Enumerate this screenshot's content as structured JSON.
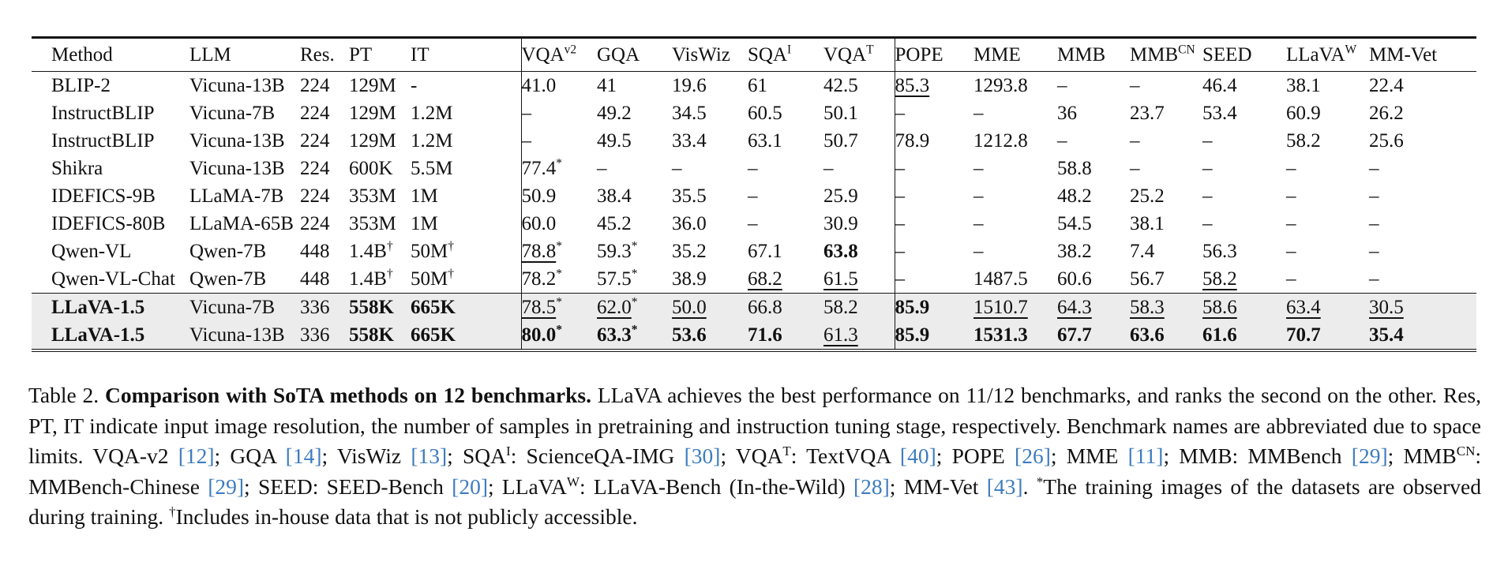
{
  "colors": {
    "citation": "#3e7cbf",
    "highlight_row_bg": "#ececec",
    "rule": "#141414",
    "text": "#111111"
  },
  "table": {
    "columns": [
      {
        "t": "Method"
      },
      {
        "t": "LLM"
      },
      {
        "t": "Res."
      },
      {
        "t": "PT"
      },
      {
        "t": "IT",
        "sep": true
      },
      {
        "t": "VQA",
        "sup": "v2"
      },
      {
        "t": "GQA"
      },
      {
        "t": "VisWiz"
      },
      {
        "t": "SQA",
        "sup": "I"
      },
      {
        "t": "VQA",
        "sup": "T",
        "sep": true
      },
      {
        "t": "POPE"
      },
      {
        "t": "MME"
      },
      {
        "t": "MMB"
      },
      {
        "t": "MMB",
        "sup": "CN"
      },
      {
        "t": "SEED"
      },
      {
        "t": "LLaVA",
        "sup": "W"
      },
      {
        "t": "MM-Vet"
      }
    ],
    "rows": [
      {
        "highlight": false,
        "cells": [
          "BLIP-2",
          "Vicuna-13B",
          "224",
          "129M",
          "-",
          "41.0",
          "41",
          "19.6",
          "61",
          "42.5",
          {
            "t": "85.3",
            "st": "u"
          },
          "1293.8",
          "–",
          "–",
          "46.4",
          "38.1",
          "22.4"
        ]
      },
      {
        "highlight": false,
        "cells": [
          "InstructBLIP",
          "Vicuna-7B",
          "224",
          "129M",
          "1.2M",
          "–",
          "49.2",
          "34.5",
          "60.5",
          "50.1",
          "–",
          "–",
          "36",
          "23.7",
          "53.4",
          "60.9",
          "26.2"
        ]
      },
      {
        "highlight": false,
        "cells": [
          "InstructBLIP",
          "Vicuna-13B",
          "224",
          "129M",
          "1.2M",
          "–",
          "49.5",
          "33.4",
          "63.1",
          "50.7",
          "78.9",
          "1212.8",
          "–",
          "–",
          "–",
          "58.2",
          "25.6"
        ]
      },
      {
        "highlight": false,
        "cells": [
          "Shikra",
          "Vicuna-13B",
          "224",
          "600K",
          "5.5M",
          {
            "t": "77.4",
            "sup": "*"
          },
          "–",
          "–",
          "–",
          "–",
          "–",
          "–",
          "58.8",
          "–",
          "–",
          "–",
          "–"
        ]
      },
      {
        "highlight": false,
        "cells": [
          "IDEFICS-9B",
          "LLaMA-7B",
          "224",
          "353M",
          "1M",
          "50.9",
          "38.4",
          "35.5",
          "–",
          "25.9",
          "–",
          "–",
          "48.2",
          "25.2",
          "–",
          "–",
          "–"
        ]
      },
      {
        "highlight": false,
        "cells": [
          "IDEFICS-80B",
          "LLaMA-65B",
          "224",
          "353M",
          "1M",
          "60.0",
          "45.2",
          "36.0",
          "–",
          "30.9",
          "–",
          "–",
          "54.5",
          "38.1",
          "–",
          "–",
          "–"
        ]
      },
      {
        "highlight": false,
        "cells": [
          "Qwen-VL",
          "Qwen-7B",
          "448",
          {
            "t": "1.4B",
            "sup": "†"
          },
          {
            "t": "50M",
            "sup": "†"
          },
          {
            "t": "78.8",
            "sup": "*",
            "st": "u"
          },
          {
            "t": "59.3",
            "sup": "*"
          },
          "35.2",
          "67.1",
          {
            "t": "63.8",
            "st": "b"
          },
          "–",
          "–",
          "38.2",
          "7.4",
          "56.3",
          "–",
          "–"
        ]
      },
      {
        "highlight": false,
        "cells": [
          "Qwen-VL-Chat",
          "Qwen-7B",
          "448",
          {
            "t": "1.4B",
            "sup": "†"
          },
          {
            "t": "50M",
            "sup": "†"
          },
          {
            "t": "78.2",
            "sup": "*"
          },
          {
            "t": "57.5",
            "sup": "*"
          },
          "38.9",
          {
            "t": "68.2",
            "st": "u"
          },
          {
            "t": "61.5",
            "st": "u"
          },
          "–",
          "1487.5",
          "60.6",
          "56.7",
          {
            "t": "58.2",
            "st": "u"
          },
          "–",
          "–"
        ]
      },
      {
        "highlight": true,
        "cells": [
          {
            "t": "LLaVA-1.5",
            "st": "b"
          },
          "Vicuna-7B",
          "336",
          {
            "t": "558K",
            "st": "b"
          },
          {
            "t": "665K",
            "st": "b"
          },
          {
            "t": "78.5",
            "sup": "*",
            "st": "u"
          },
          {
            "t": "62.0",
            "sup": "*",
            "st": "u"
          },
          {
            "t": "50.0",
            "st": "u"
          },
          "66.8",
          "58.2",
          {
            "t": "85.9",
            "st": "b"
          },
          {
            "t": "1510.7",
            "st": "u"
          },
          {
            "t": "64.3",
            "st": "u"
          },
          {
            "t": "58.3",
            "st": "u"
          },
          {
            "t": "58.6",
            "st": "u"
          },
          {
            "t": "63.4",
            "st": "u"
          },
          {
            "t": "30.5",
            "st": "u"
          }
        ]
      },
      {
        "highlight": true,
        "cells": [
          {
            "t": "LLaVA-1.5",
            "st": "b"
          },
          "Vicuna-13B",
          "336",
          {
            "t": "558K",
            "st": "b"
          },
          {
            "t": "665K",
            "st": "b"
          },
          {
            "t": "80.0",
            "sup": "*",
            "st": "b"
          },
          {
            "t": "63.3",
            "sup": "*",
            "st": "b"
          },
          {
            "t": "53.6",
            "st": "b"
          },
          {
            "t": "71.6",
            "st": "b"
          },
          {
            "t": "61.3",
            "st": "u"
          },
          {
            "t": "85.9",
            "st": "b"
          },
          {
            "t": "1531.3",
            "st": "b"
          },
          {
            "t": "67.7",
            "st": "b"
          },
          {
            "t": "63.6",
            "st": "b"
          },
          {
            "t": "61.6",
            "st": "b"
          },
          {
            "t": "70.7",
            "st": "b"
          },
          {
            "t": "35.4",
            "st": "b"
          }
        ]
      }
    ]
  },
  "caption": {
    "segments": [
      {
        "t": "Table 2. "
      },
      {
        "t": "Comparison with SoTA methods on 12 benchmarks.",
        "b": true
      },
      {
        "t": " LLaVA achieves the best performance on 11/12 benchmarks, and ranks the second on the other. Res, PT, IT indicate input image resolution, the number of samples in pretraining and instruction tuning stage, respectively. Benchmark names are abbreviated due to space limits. VQA-v2 "
      },
      {
        "cite": "[12]"
      },
      {
        "t": "; GQA "
      },
      {
        "cite": "[14]"
      },
      {
        "t": "; VisWiz "
      },
      {
        "cite": "[13]"
      },
      {
        "t": "; SQA"
      },
      {
        "sup": "I"
      },
      {
        "t": ": ScienceQA-IMG "
      },
      {
        "cite": "[30]"
      },
      {
        "t": "; VQA"
      },
      {
        "sup": "T"
      },
      {
        "t": ": TextVQA "
      },
      {
        "cite": "[40]"
      },
      {
        "t": "; POPE "
      },
      {
        "cite": "[26]"
      },
      {
        "t": "; MME "
      },
      {
        "cite": "[11]"
      },
      {
        "t": "; MMB: MMBench "
      },
      {
        "cite": "[29]"
      },
      {
        "t": "; MMB"
      },
      {
        "sup": "CN"
      },
      {
        "t": ": MMBench-Chinese "
      },
      {
        "cite": "[29]"
      },
      {
        "t": "; SEED: SEED-Bench "
      },
      {
        "cite": "[20]"
      },
      {
        "t": "; LLaVA"
      },
      {
        "sup": "W"
      },
      {
        "t": ": LLaVA-Bench (In-the-Wild) "
      },
      {
        "cite": "[28]"
      },
      {
        "t": "; MM-Vet "
      },
      {
        "cite": "[43]"
      },
      {
        "t": ". "
      },
      {
        "sup": "*"
      },
      {
        "t": "The training images of the datasets are observed during training. "
      },
      {
        "sup": "†"
      },
      {
        "t": "Includes in-house data that is not publicly accessible."
      }
    ]
  }
}
